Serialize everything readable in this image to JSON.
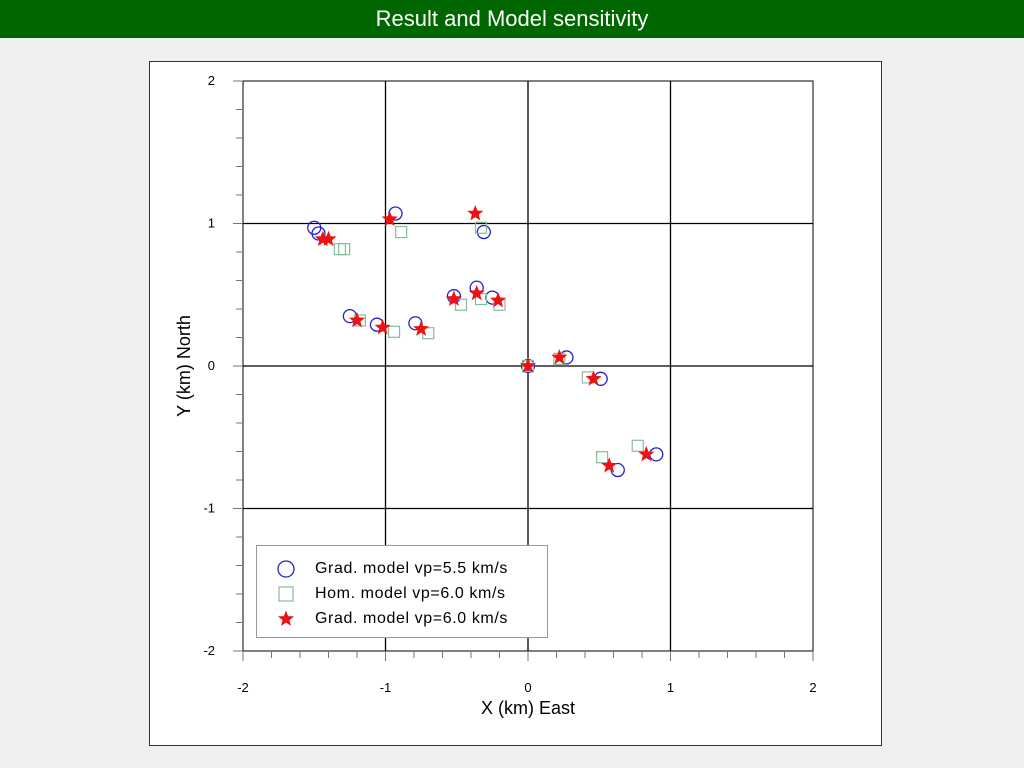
{
  "header": {
    "title": "Result and Model sensitivity"
  },
  "colors": {
    "header_bg": "#006600",
    "circle": "#2222cc",
    "square": "#88bb99",
    "star": "#ee1111"
  },
  "chart_data": {
    "type": "scatter",
    "title": "",
    "xlabel": "X (km)  East",
    "ylabel": "Y (km)  North",
    "xlim": [
      -2,
      2
    ],
    "ylim": [
      -2,
      2
    ],
    "xticks": [
      -2,
      -1,
      0,
      1,
      2
    ],
    "yticks": [
      -2,
      -1,
      0,
      1,
      2
    ],
    "grid": true,
    "legend_position": "bottom-left",
    "series": [
      {
        "name": "Grad. model vp=5.5 km/s",
        "marker": "circle",
        "points": [
          [
            -1.5,
            0.97
          ],
          [
            -1.47,
            0.93
          ],
          [
            -0.93,
            1.07
          ],
          [
            -0.31,
            0.94
          ],
          [
            -1.25,
            0.35
          ],
          [
            -1.06,
            0.29
          ],
          [
            -0.79,
            0.3
          ],
          [
            -0.52,
            0.49
          ],
          [
            -0.36,
            0.55
          ],
          [
            -0.25,
            0.48
          ],
          [
            0.0,
            0.0
          ],
          [
            0.27,
            0.06
          ],
          [
            0.51,
            -0.09
          ],
          [
            0.63,
            -0.73
          ],
          [
            0.9,
            -0.62
          ]
        ]
      },
      {
        "name": "Hom. model vp=6.0 km/s",
        "marker": "square",
        "points": [
          [
            -1.32,
            0.82
          ],
          [
            -1.29,
            0.82
          ],
          [
            -0.89,
            0.94
          ],
          [
            -0.33,
            0.97
          ],
          [
            -1.18,
            0.32
          ],
          [
            -0.94,
            0.24
          ],
          [
            -0.7,
            0.23
          ],
          [
            -0.47,
            0.43
          ],
          [
            -0.33,
            0.47
          ],
          [
            -0.2,
            0.43
          ],
          [
            0.0,
            0.0
          ],
          [
            0.22,
            0.05
          ],
          [
            0.42,
            -0.08
          ],
          [
            0.52,
            -0.64
          ],
          [
            0.77,
            -0.56
          ]
        ]
      },
      {
        "name": "Grad. model vp=6.0 km/s",
        "marker": "star",
        "points": [
          [
            -1.44,
            0.89
          ],
          [
            -1.4,
            0.89
          ],
          [
            -0.97,
            1.03
          ],
          [
            -0.37,
            1.07
          ],
          [
            -1.2,
            0.32
          ],
          [
            -1.02,
            0.27
          ],
          [
            -0.75,
            0.26
          ],
          [
            -0.52,
            0.47
          ],
          [
            -0.36,
            0.51
          ],
          [
            -0.21,
            0.46
          ],
          [
            0.0,
            0.0
          ],
          [
            0.22,
            0.06
          ],
          [
            0.46,
            -0.09
          ],
          [
            0.57,
            -0.7
          ],
          [
            0.83,
            -0.62
          ]
        ]
      }
    ]
  }
}
